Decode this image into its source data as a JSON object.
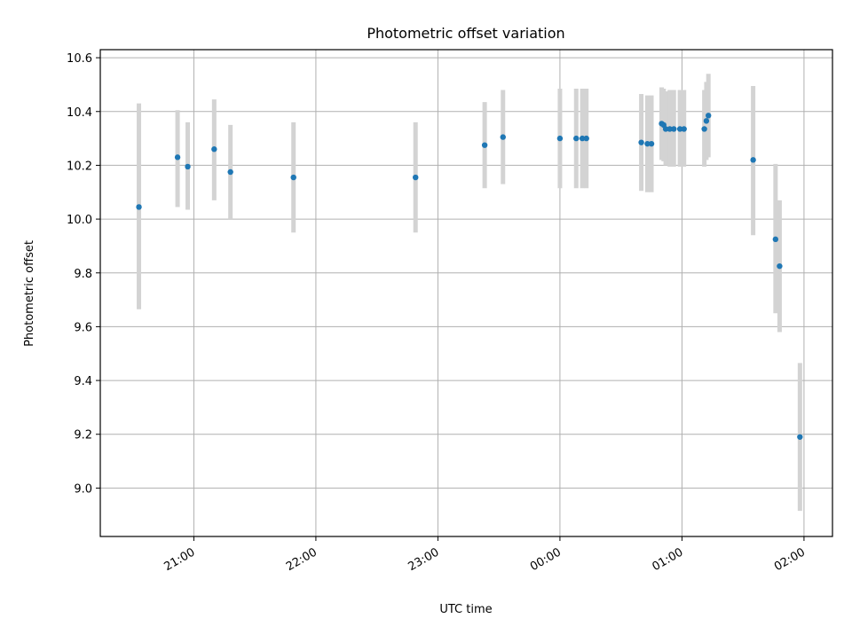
{
  "chart_data": {
    "type": "scatter",
    "title": "Photometric offset variation",
    "xlabel": "UTC time",
    "ylabel": "Photometric offset",
    "x_ticks": [
      "21:00",
      "22:00",
      "23:00",
      "00:00",
      "01:00",
      "02:00"
    ],
    "y_ticks": [
      "9.0",
      "9.2",
      "9.4",
      "9.6",
      "9.8",
      "10.0",
      "10.2",
      "10.4",
      "10.6"
    ],
    "xlim": [
      "20:14",
      "02:14"
    ],
    "ylim": [
      8.82,
      10.63
    ],
    "grid": true,
    "marker_color": "#1f77b4",
    "errorbar_color": "#d3d3d3",
    "points": [
      {
        "x": "20:33",
        "y": 10.045,
        "lo": 9.665,
        "hi": 10.43
      },
      {
        "x": "20:52",
        "y": 10.23,
        "lo": 10.045,
        "hi": 10.405
      },
      {
        "x": "20:57",
        "y": 10.195,
        "lo": 10.035,
        "hi": 10.36
      },
      {
        "x": "21:10",
        "y": 10.26,
        "lo": 10.07,
        "hi": 10.445
      },
      {
        "x": "21:18",
        "y": 10.175,
        "lo": 10.0,
        "hi": 10.35
      },
      {
        "x": "21:49",
        "y": 10.155,
        "lo": 9.95,
        "hi": 10.36
      },
      {
        "x": "22:49",
        "y": 10.155,
        "lo": 9.95,
        "hi": 10.36
      },
      {
        "x": "23:23",
        "y": 10.275,
        "lo": 10.115,
        "hi": 10.435
      },
      {
        "x": "23:32",
        "y": 10.305,
        "lo": 10.13,
        "hi": 10.48
      },
      {
        "x": "00:00",
        "y": 10.3,
        "lo": 10.115,
        "hi": 10.485
      },
      {
        "x": "00:08",
        "y": 10.3,
        "lo": 10.115,
        "hi": 10.485
      },
      {
        "x": "00:11",
        "y": 10.3,
        "lo": 10.115,
        "hi": 10.485
      },
      {
        "x": "00:13",
        "y": 10.3,
        "lo": 10.115,
        "hi": 10.485
      },
      {
        "x": "00:40",
        "y": 10.285,
        "lo": 10.105,
        "hi": 10.465
      },
      {
        "x": "00:43",
        "y": 10.28,
        "lo": 10.1,
        "hi": 10.46
      },
      {
        "x": "00:45",
        "y": 10.28,
        "lo": 10.1,
        "hi": 10.46
      },
      {
        "x": "00:50",
        "y": 10.355,
        "lo": 10.22,
        "hi": 10.49
      },
      {
        "x": "00:51",
        "y": 10.35,
        "lo": 10.215,
        "hi": 10.485
      },
      {
        "x": "00:52",
        "y": 10.335,
        "lo": 10.2,
        "hi": 10.475
      },
      {
        "x": "00:54",
        "y": 10.335,
        "lo": 10.195,
        "hi": 10.48
      },
      {
        "x": "00:56",
        "y": 10.335,
        "lo": 10.195,
        "hi": 10.48
      },
      {
        "x": "00:59",
        "y": 10.335,
        "lo": 10.195,
        "hi": 10.48
      },
      {
        "x": "01:01",
        "y": 10.335,
        "lo": 10.195,
        "hi": 10.48
      },
      {
        "x": "01:11",
        "y": 10.335,
        "lo": 10.195,
        "hi": 10.48
      },
      {
        "x": "01:12",
        "y": 10.365,
        "lo": 10.22,
        "hi": 10.51
      },
      {
        "x": "01:13",
        "y": 10.385,
        "lo": 10.23,
        "hi": 10.54
      },
      {
        "x": "01:35",
        "y": 10.22,
        "lo": 9.94,
        "hi": 10.495
      },
      {
        "x": "01:46",
        "y": 9.925,
        "lo": 9.65,
        "hi": 10.205
      },
      {
        "x": "01:48",
        "y": 9.825,
        "lo": 9.58,
        "hi": 10.07
      },
      {
        "x": "01:58",
        "y": 9.19,
        "lo": 8.915,
        "hi": 9.465
      }
    ]
  }
}
